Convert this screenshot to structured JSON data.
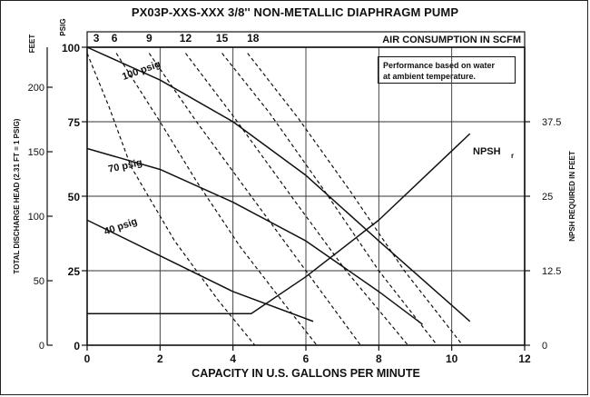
{
  "chart_data": {
    "type": "line",
    "title": "PX03P-XXS-XXX 3/8'' NON-METALLIC DIAPHRAGM PUMP",
    "xlabel": "CAPACITY IN U.S. GALLONS PER MINUTE",
    "xlim": [
      0,
      12
    ],
    "x_ticks": [
      "0",
      "2",
      "4",
      "6",
      "8",
      "10",
      "12"
    ],
    "y_psig": {
      "label": "PSIG",
      "lim": [
        0,
        100
      ],
      "ticks": [
        "0",
        "25",
        "50",
        "75",
        "100"
      ]
    },
    "y_feet": {
      "label": "FEET",
      "ticks": [
        "0",
        "50",
        "100",
        "150",
        "200"
      ]
    },
    "y_head_label": "TOTAL DISCHARGE HEAD (2.31 FT = 1 PSIG)",
    "y_right": {
      "label": "NPSH REQUIRED IN FEET",
      "ticks": [
        "0",
        "12.5",
        "25",
        "37.5"
      ]
    },
    "air_consumption": {
      "label": "AIR CONSUMPTION IN SCFM",
      "ticks": [
        "3",
        "6",
        "9",
        "12",
        "15",
        "18"
      ]
    },
    "note": [
      "Performance based on water",
      "at ambient temperature."
    ],
    "grid": true,
    "series": [
      {
        "name": "100 psig",
        "style": "solid",
        "x": [
          0,
          2,
          4,
          6,
          8,
          10.5
        ],
        "y": [
          100,
          89,
          75,
          57,
          35,
          8
        ]
      },
      {
        "name": "70 psig",
        "style": "solid",
        "x": [
          0,
          2,
          4,
          6,
          8,
          9.2
        ],
        "y": [
          66,
          59,
          48,
          35,
          18,
          7
        ]
      },
      {
        "name": "40 psig",
        "style": "solid",
        "x": [
          0,
          2,
          4,
          6.2
        ],
        "y": [
          42,
          30,
          18,
          8
        ]
      },
      {
        "name": "NPSHr",
        "style": "solid",
        "x": [
          0,
          4.5,
          6,
          8,
          10.5
        ],
        "y_feet_npsh": [
          5.3,
          5.3,
          11.5,
          21,
          35.5
        ]
      },
      {
        "name": "3",
        "style": "dashed",
        "x": [
          0,
          0.6,
          1.2,
          2.4,
          3.6,
          4.6
        ],
        "y": [
          98,
          80,
          60,
          35,
          15,
          0
        ]
      },
      {
        "name": "6",
        "style": "dashed",
        "x": [
          0.8,
          2,
          3,
          4.2,
          5.4,
          6.3
        ],
        "y": [
          98,
          75,
          55,
          33,
          14,
          0
        ]
      },
      {
        "name": "9",
        "style": "dashed",
        "x": [
          1.7,
          3,
          4.5,
          6,
          7.5
        ],
        "y": [
          98,
          75,
          50,
          25,
          0
        ]
      },
      {
        "name": "12",
        "style": "dashed",
        "x": [
          2.7,
          4,
          5.6,
          7.1,
          8.8
        ],
        "y": [
          98,
          77,
          50,
          25,
          0
        ]
      },
      {
        "name": "15",
        "style": "dashed",
        "x": [
          3.7,
          5,
          6.5,
          8,
          9.6
        ],
        "y": [
          98,
          78,
          52,
          25,
          0
        ]
      },
      {
        "name": "18",
        "style": "dashed",
        "x": [
          4.4,
          5.8,
          7.2,
          8.7,
          10.3
        ],
        "y": [
          98,
          76,
          52,
          25,
          0
        ]
      }
    ],
    "curve_labels": [
      "100 psig",
      "70 psig",
      "40 psig"
    ],
    "npsh_label": "NPSH",
    "npsh_sub": "r"
  }
}
